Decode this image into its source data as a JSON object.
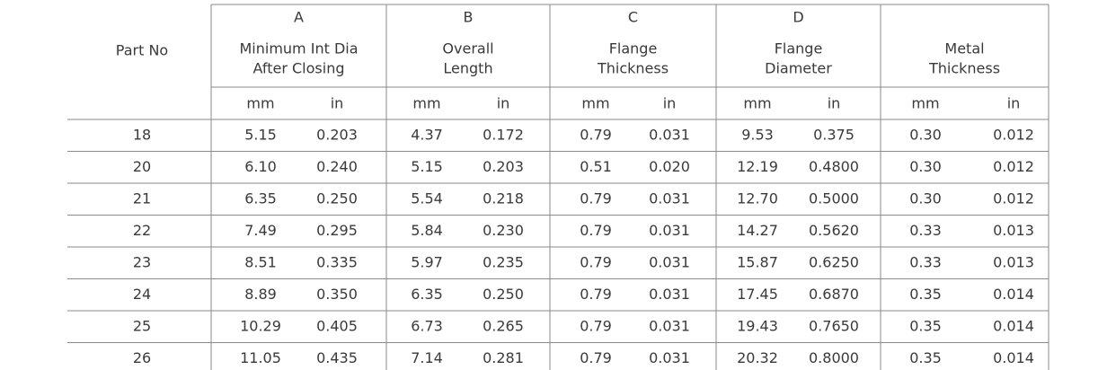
{
  "table": {
    "part_no_header": "Part No",
    "groups": [
      {
        "letter": "A",
        "label": [
          "Minimum Int Dia",
          "After Closing"
        ]
      },
      {
        "letter": "B",
        "label": [
          "Overall",
          "Length"
        ]
      },
      {
        "letter": "C",
        "label": [
          "Flange",
          "Thickness"
        ]
      },
      {
        "letter": "D",
        "label": [
          "Flange",
          "Diameter"
        ]
      },
      {
        "label": [
          "Metal",
          "Thickness"
        ]
      }
    ],
    "units": [
      "mm",
      "in"
    ],
    "rows": [
      [
        "18",
        "5.15",
        "0.203",
        "4.37",
        "0.172",
        "0.79",
        "0.031",
        "9.53",
        "0.375",
        "0.30",
        "0.012"
      ],
      [
        "20",
        "6.10",
        "0.240",
        "5.15",
        "0.203",
        "0.51",
        "0.020",
        "12.19",
        "0.4800",
        "0.30",
        "0.012"
      ],
      [
        "21",
        "6.35",
        "0.250",
        "5.54",
        "0.218",
        "0.79",
        "0.031",
        "12.70",
        "0.5000",
        "0.30",
        "0.012"
      ],
      [
        "22",
        "7.49",
        "0.295",
        "5.84",
        "0.230",
        "0.79",
        "0.031",
        "14.27",
        "0.5620",
        "0.33",
        "0.013"
      ],
      [
        "23",
        "8.51",
        "0.335",
        "5.97",
        "0.235",
        "0.79",
        "0.031",
        "15.87",
        "0.6250",
        "0.33",
        "0.013"
      ],
      [
        "24",
        "8.89",
        "0.350",
        "6.35",
        "0.250",
        "0.79",
        "0.031",
        "17.45",
        "0.6870",
        "0.35",
        "0.014"
      ],
      [
        "25",
        "10.29",
        "0.405",
        "6.73",
        "0.265",
        "0.79",
        "0.031",
        "19.43",
        "0.7650",
        "0.35",
        "0.014"
      ],
      [
        "26",
        "11.05",
        "0.435",
        "7.14",
        "0.281",
        "0.79",
        "0.031",
        "20.32",
        "0.8000",
        "0.35",
        "0.014"
      ]
    ]
  }
}
